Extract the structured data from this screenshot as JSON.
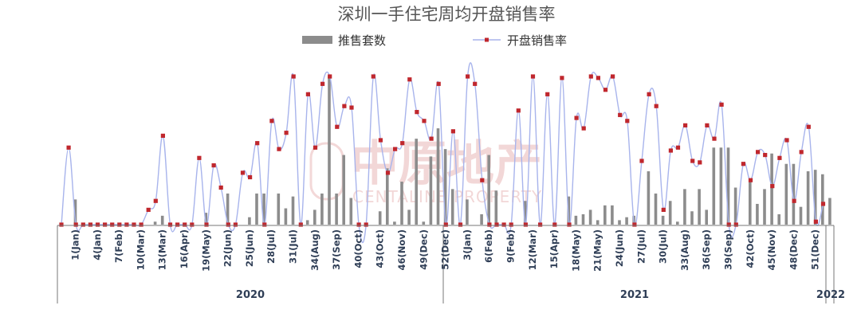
{
  "chart_data": {
    "type": "bar+line",
    "title": "深圳一手住宅周均开盘销售率",
    "series": [
      {
        "name": "推售套数",
        "kind": "bar",
        "color": "#8c8c8c"
      },
      {
        "name": "开盘销售率",
        "kind": "line",
        "color": "#a8b4ec",
        "marker_color": "#c0272d"
      }
    ],
    "legend_position": "top-center",
    "tick_labels": [
      "1(Jan)",
      "4(Jan)",
      "7(Feb)",
      "10(Mar)",
      "13(Mar)",
      "16(Apr)",
      "19(May)",
      "22(Jun)",
      "25(Jun)",
      "28(Jul)",
      "31(Jul)",
      "34(Aug)",
      "37(Sep)",
      "40(Oct)",
      "43(Oct)",
      "46(Nov)",
      "49(Dec)",
      "52(Dec)",
      "3(Jan)",
      "6(Feb)",
      "9(Feb)",
      "12(Mar)",
      "15(Apr)",
      "18(May)",
      "21(May)",
      "24(Jun)",
      "27(Jul)",
      "30(Jul)",
      "33(Aug)",
      "36(Sep)",
      "39(Sep)",
      "42(Oct)",
      "45(Nov)",
      "48(Dec)",
      "51(Dec)"
    ],
    "years": [
      "2020",
      "2021",
      "2022"
    ],
    "line_values": [
      0,
      0.52,
      0,
      0,
      0,
      0,
      0,
      0,
      0,
      0,
      0,
      0,
      0.1,
      0.16,
      0.6,
      0,
      0,
      0,
      0,
      0.45,
      0,
      0.4,
      0.25,
      0,
      0,
      0.35,
      0.32,
      0.55,
      0,
      0.7,
      0.51,
      0.62,
      1.0,
      0,
      0.88,
      0.52,
      0.95,
      1.0,
      0.66,
      0.8,
      0.79,
      0,
      0,
      1.0,
      0.57,
      0.35,
      0.51,
      0.55,
      0.98,
      0.76,
      0.7,
      0.58,
      0.95,
      0,
      0.63,
      0,
      1.0,
      0.95,
      0.3,
      0,
      0,
      0,
      0,
      0.77,
      0,
      1.0,
      0,
      0.88,
      0,
      0.99,
      0,
      0.72,
      0.65,
      1.0,
      0.99,
      0.91,
      1.0,
      0.74,
      0.7,
      0,
      0.43,
      0.88,
      0.8,
      0.1,
      0.5,
      0.52,
      0.67,
      0.43,
      0.42,
      0.67,
      0.58,
      0.81,
      0,
      0,
      0.41,
      0.3,
      0.49,
      0.47,
      0.26,
      0.45,
      0.57,
      0.16,
      0.49,
      0.66,
      0.02,
      0.14
    ],
    "bar_values": [
      0,
      0.17,
      0,
      0,
      0,
      0,
      0,
      0,
      0,
      0,
      0,
      0,
      0.02,
      0.06,
      0,
      0,
      0,
      0,
      0,
      0.08,
      0,
      0,
      0.21,
      0,
      0,
      0.05,
      0.21,
      0.21,
      0,
      0.21,
      0.11,
      0.19,
      0,
      0.03,
      0.1,
      0.21,
      1.0,
      0.21,
      0.47,
      0.18,
      0,
      0,
      0,
      0.09,
      0.38,
      0.02,
      0.29,
      0.1,
      0.58,
      0.02,
      0.46,
      0.65,
      0.51,
      0.24,
      0,
      0.17,
      0,
      0.07,
      0.47,
      0.23,
      0,
      0,
      0,
      0.16,
      0,
      0,
      0,
      0,
      0,
      0.19,
      0.06,
      0.07,
      0.1,
      0.03,
      0.13,
      0.13,
      0.03,
      0.05,
      0.06,
      0,
      0.36,
      0.21,
      0.06,
      0.16,
      0.02,
      0.24,
      0.09,
      0.24,
      0.1,
      0.52,
      0.52,
      0.52,
      0.25,
      0,
      0.29,
      0.14,
      0.24,
      0.48,
      0.07,
      0.41,
      0.41,
      0.12,
      0.36,
      0.37,
      0.34,
      0.18
    ],
    "ylim": [
      0,
      1
    ],
    "grid": false
  },
  "watermark": {
    "main": "中原地产",
    "sub": "CENTALINE PROPERTY"
  }
}
